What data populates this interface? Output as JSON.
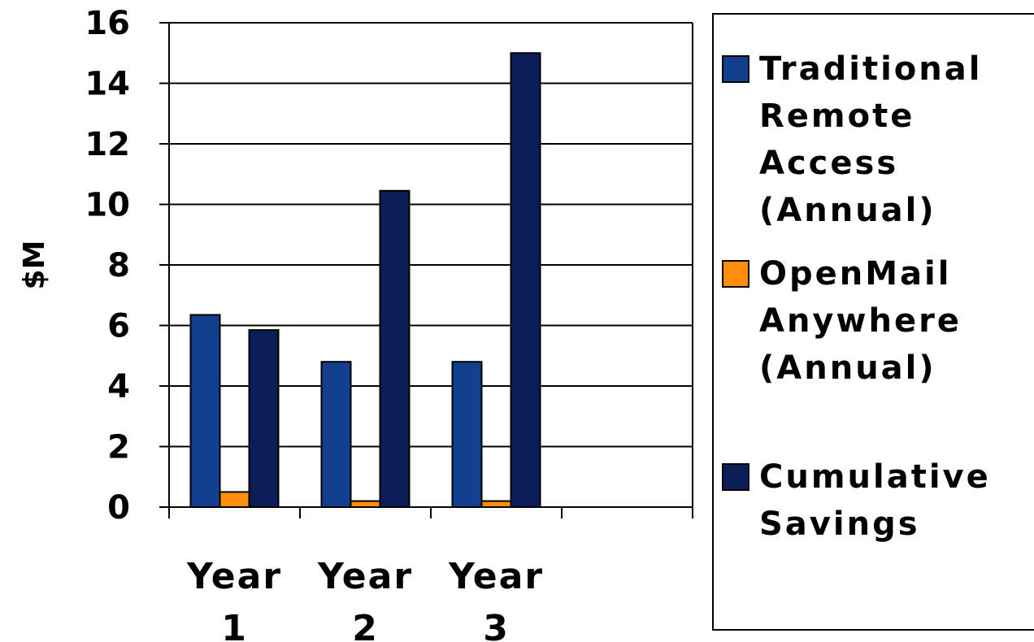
{
  "chart_data": {
    "type": "bar",
    "categories": [
      "Year\n1",
      "Year\n2",
      "Year\n3",
      ""
    ],
    "series": [
      {
        "name": "Traditional Remote Access (Annual)",
        "values": [
          6.35,
          4.8,
          4.8,
          null
        ],
        "color": "#12408f"
      },
      {
        "name": "OpenMail Anywhere (Annual)",
        "values": [
          0.5,
          0.2,
          0.2,
          null
        ],
        "color": "#ff8c0a"
      },
      {
        "name": "Cumulative Savings",
        "values": [
          5.85,
          10.45,
          15.0,
          null
        ],
        "color": "#0c1e58"
      }
    ],
    "ylabel": "$M",
    "xlabel": "",
    "ylim": [
      0,
      16
    ],
    "yticks": [
      0,
      2,
      4,
      6,
      8,
      10,
      12,
      14,
      16
    ],
    "grid": true,
    "legend_position": "right"
  },
  "legend": {
    "items": [
      {
        "label": "Traditional\nRemote\nAccess\n(Annual)",
        "color": "#12408f"
      },
      {
        "label": "OpenMail\nAnywhere\n(Annual)",
        "color": "#ff8c0a"
      },
      {
        "label": "Cumulative\nSavings",
        "color": "#0c1e58"
      }
    ]
  }
}
